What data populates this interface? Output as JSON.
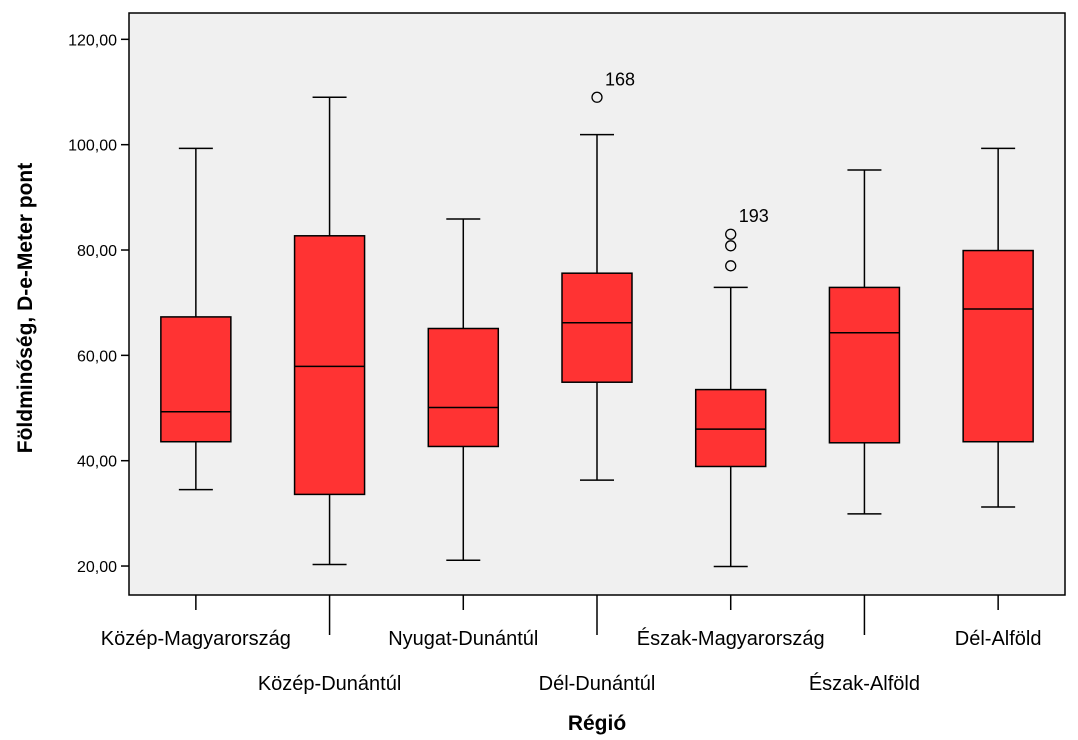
{
  "chart_data": {
    "type": "boxplot",
    "title": "",
    "xlabel": "Régió",
    "ylabel": "Földminőség, D-e-Meter pont",
    "ylim": [
      14.5,
      125
    ],
    "yticks": [
      20,
      40,
      60,
      80,
      100,
      120
    ],
    "ytick_labels": [
      "20,00",
      "40,00",
      "60,00",
      "80,00",
      "100,00",
      "120,00"
    ],
    "grid": false,
    "box_color": "#ff3333",
    "plot_background": "#f0f0f0",
    "categories": [
      "Közép-Magyarország",
      "Közép-Dunántúl",
      "Nyugat-Dunántúl",
      "Dél-Dunántúl",
      "Észak-Magyarország",
      "Észak-Alföld",
      "Dél-Alföld"
    ],
    "boxes": [
      {
        "category": "Közép-Magyarország",
        "whisker_low": 34.5,
        "q1": 43.6,
        "median": 49.3,
        "q3": 67.3,
        "whisker_high": 99.3,
        "outliers": []
      },
      {
        "category": "Közép-Dunántúl",
        "whisker_low": 20.3,
        "q1": 33.6,
        "median": 57.9,
        "q3": 82.7,
        "whisker_high": 109.0,
        "outliers": []
      },
      {
        "category": "Nyugat-Dunántúl",
        "whisker_low": 21.1,
        "q1": 42.7,
        "median": 50.1,
        "q3": 65.1,
        "whisker_high": 85.9,
        "outliers": []
      },
      {
        "category": "Dél-Dunántúl",
        "whisker_low": 36.3,
        "q1": 54.9,
        "median": 66.2,
        "q3": 75.6,
        "whisker_high": 101.9,
        "outliers": [
          {
            "value": 109.0,
            "label": "168"
          }
        ]
      },
      {
        "category": "Észak-Magyarország",
        "whisker_low": 19.9,
        "q1": 38.9,
        "median": 46.0,
        "q3": 53.5,
        "whisker_high": 72.9,
        "outliers": [
          {
            "value": 83.0,
            "label": "193"
          },
          {
            "value": 80.8,
            "label": ""
          },
          {
            "value": 77.0,
            "label": ""
          }
        ]
      },
      {
        "category": "Észak-Alföld",
        "whisker_low": 29.9,
        "q1": 43.4,
        "median": 64.3,
        "q3": 72.9,
        "whisker_high": 95.2,
        "outliers": []
      },
      {
        "category": "Dél-Alföld",
        "whisker_low": 31.2,
        "q1": 43.6,
        "median": 68.8,
        "q3": 79.9,
        "whisker_high": 99.3,
        "outliers": []
      }
    ]
  }
}
